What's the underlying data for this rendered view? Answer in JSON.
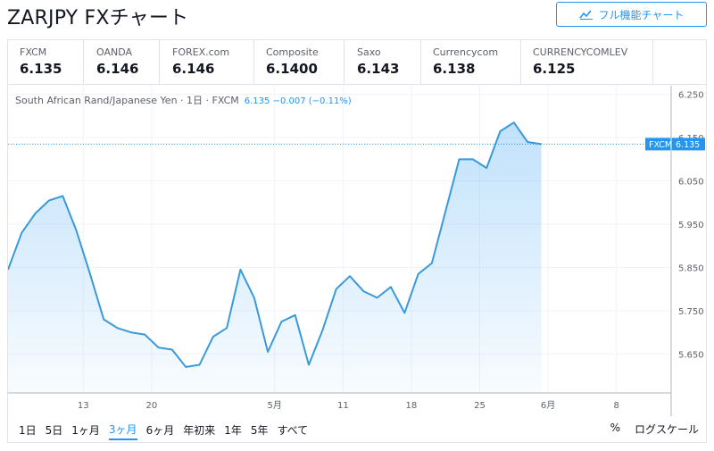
{
  "page": {
    "title": "ZARJPY FXチャート",
    "fullchart_label": "フル機能チャート"
  },
  "tabs": [
    {
      "name": "FXCM",
      "price": "6.135",
      "active": true
    },
    {
      "name": "OANDA",
      "price": "6.146",
      "active": false
    },
    {
      "name": "FOREX.com",
      "price": "6.146",
      "active": false
    },
    {
      "name": "Composite",
      "price": "6.1400",
      "active": false
    },
    {
      "name": "Saxo",
      "price": "6.143",
      "active": false
    },
    {
      "name": "Currencycom",
      "price": "6.138",
      "active": false
    },
    {
      "name": "CURRENCYCOMLEV",
      "price": "6.125",
      "active": false
    }
  ],
  "legend": {
    "text": "South African Rand/Japanese Yen · 1日 · FXCM",
    "values": "6.135 −0.007 (−0.11%)"
  },
  "price_tag": {
    "label": "FXCM",
    "value": "6.135"
  },
  "toolbar": {
    "ranges": [
      {
        "label": "1日",
        "active": false
      },
      {
        "label": "5日",
        "active": false
      },
      {
        "label": "1ヶ月",
        "active": false
      },
      {
        "label": "3ヶ月",
        "active": true
      },
      {
        "label": "6ヶ月",
        "active": false
      },
      {
        "label": "年初来",
        "active": false
      },
      {
        "label": "1年",
        "active": false
      },
      {
        "label": "5年",
        "active": false
      },
      {
        "label": "すべて",
        "active": false
      }
    ],
    "percent_label": "%",
    "log_label": "ログスケール"
  },
  "colors": {
    "accent": "#2196f3",
    "line": "#3a9ad9",
    "grid": "#f0f3fa",
    "axis_text": "#5d606b"
  },
  "chart_data": {
    "type": "area",
    "series_label": "FXCM",
    "x_axis": {
      "ticks": [
        {
          "label": "13",
          "index": 5.5
        },
        {
          "label": "20",
          "index": 10.5
        },
        {
          "label": "5月",
          "index": 19.5
        },
        {
          "label": "11",
          "index": 24.5
        },
        {
          "label": "18",
          "index": 29.5
        },
        {
          "label": "25",
          "index": 34.5
        },
        {
          "label": "6月",
          "index": 39.5
        },
        {
          "label": "8",
          "index": 44.5
        }
      ],
      "max_index": 48.5
    },
    "y_axis": {
      "ticks": [
        "5.650",
        "5.750",
        "5.850",
        "5.950",
        "6.050",
        "6.150",
        "6.250"
      ],
      "ylim": [
        5.56,
        6.27
      ]
    },
    "values": [
      5.845,
      5.93,
      5.975,
      6.005,
      6.015,
      5.935,
      5.835,
      5.73,
      5.71,
      5.7,
      5.695,
      5.665,
      5.66,
      5.62,
      5.625,
      5.69,
      5.71,
      5.845,
      5.78,
      5.655,
      5.725,
      5.74,
      5.625,
      5.705,
      5.8,
      5.83,
      5.795,
      5.78,
      5.805,
      5.745,
      5.835,
      5.86,
      5.98,
      6.1,
      6.1,
      6.08,
      6.165,
      6.185,
      6.14,
      6.135
    ],
    "last_value": 6.135,
    "grid": true
  }
}
